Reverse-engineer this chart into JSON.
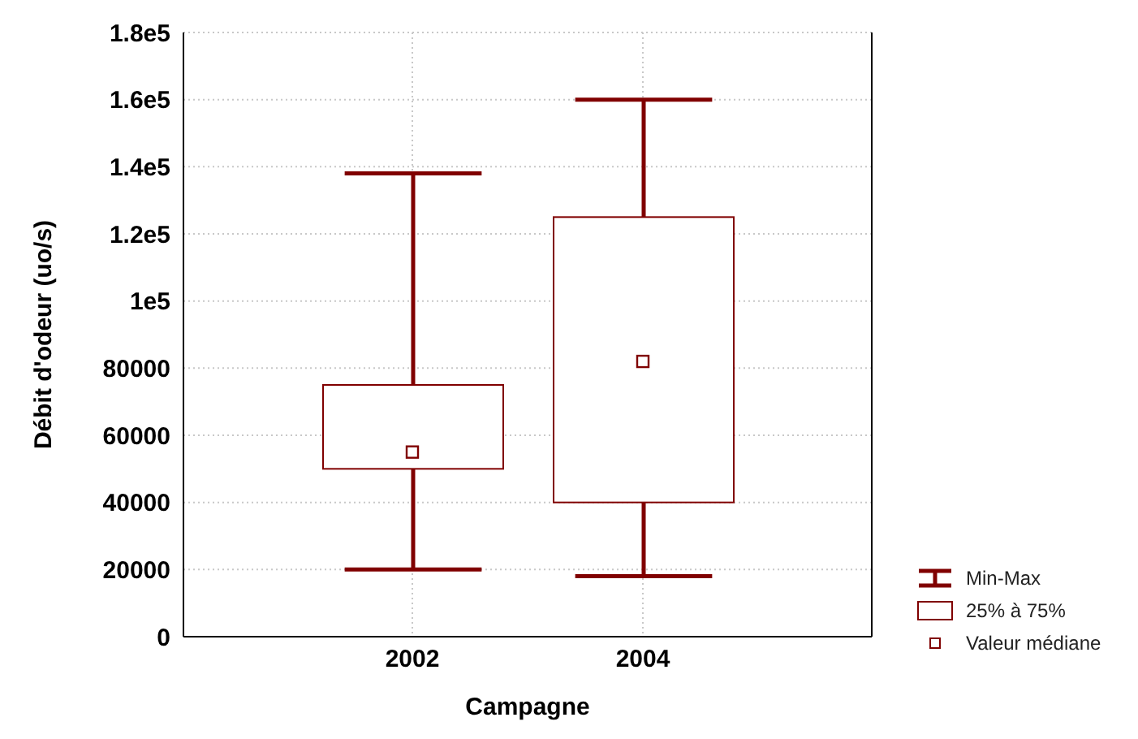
{
  "chart_data": {
    "type": "box",
    "xlabel": "Campagne",
    "ylabel": "Débit d'odeur (uo/s)",
    "categories": [
      "2002",
      "2004"
    ],
    "series": [
      {
        "color": "#800000",
        "boxes": [
          {
            "low": 20000,
            "q1": 50000,
            "median": 55000,
            "q3": 75000,
            "high": 138000
          },
          {
            "low": 18000,
            "q1": 40000,
            "median": 82000,
            "q3": 125000,
            "high": 160000
          }
        ]
      }
    ],
    "ylim": [
      0,
      180000
    ],
    "yticks": [
      0,
      20000,
      40000,
      60000,
      80000,
      {
        "value": 100000,
        "label": "1e5"
      },
      {
        "value": 120000,
        "label": "1.2e5"
      },
      {
        "value": 140000,
        "label": "1.4e5"
      },
      {
        "value": 160000,
        "label": "1.6e5"
      },
      {
        "value": 180000,
        "label": "1.8e5"
      }
    ],
    "grid": true,
    "annotations": [
      "Min-Max",
      "25% à 75%",
      "Valeur médiane"
    ]
  }
}
